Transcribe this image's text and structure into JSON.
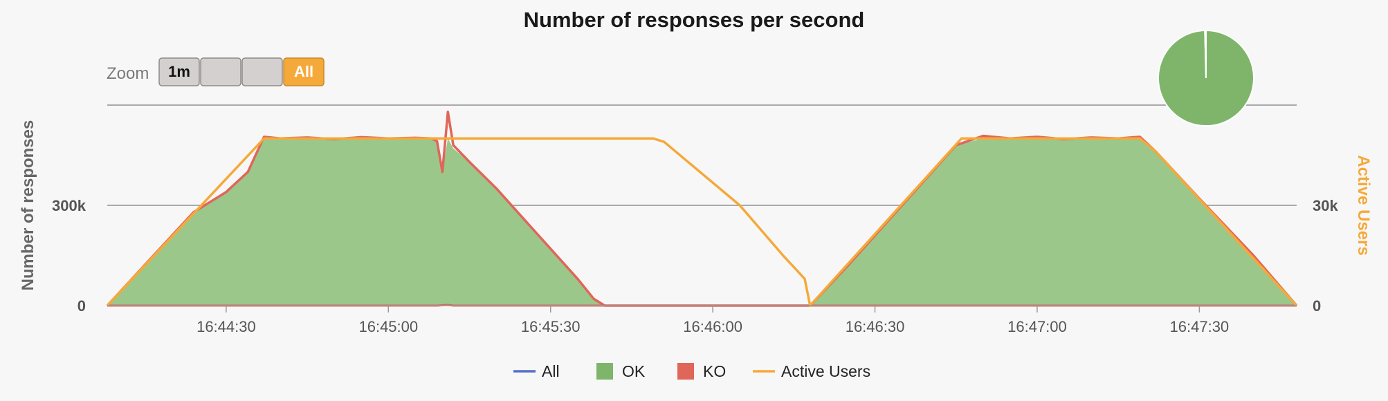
{
  "zoom": {
    "label": "Zoom",
    "buttons": [
      "1m",
      "",
      "",
      "All"
    ],
    "selected": "All"
  },
  "colors": {
    "all": "#5470c6",
    "ok": "#7fb56b",
    "ok_fill": "#9bc78b",
    "ko": "#e06659",
    "active_users": "#f5a93a",
    "selected_button": "#f5a93a"
  },
  "chart_data": {
    "type": "area",
    "title": "Number of responses per second",
    "ylabel": "Number of responses",
    "y2label": "Active Users",
    "ylim": [
      0,
      600000
    ],
    "y2lim": [
      0,
      60000
    ],
    "yticks": [
      {
        "v": 0,
        "label": "0"
      },
      {
        "v": 300000,
        "label": "300k"
      }
    ],
    "y2ticks": [
      {
        "v": 0,
        "label": "0"
      },
      {
        "v": 30000,
        "label": "30k"
      }
    ],
    "xlim": [
      "16:44:08",
      "16:47:48"
    ],
    "xticks": [
      "16:44:30",
      "16:45:00",
      "16:45:30",
      "16:46:00",
      "16:46:30",
      "16:47:00",
      "16:47:30"
    ],
    "grid": true,
    "legend_position": "bottom",
    "legend": [
      {
        "name": "All",
        "kind": "line"
      },
      {
        "name": "OK",
        "kind": "box"
      },
      {
        "name": "KO",
        "kind": "box"
      },
      {
        "name": "Active Users",
        "kind": "line"
      }
    ],
    "series": [
      {
        "name": "OK",
        "x": [
          "16:44:08",
          "16:44:16",
          "16:44:24",
          "16:44:30",
          "16:44:34",
          "16:44:37",
          "16:44:40",
          "16:44:45",
          "16:44:50",
          "16:44:55",
          "16:45:00",
          "16:45:05",
          "16:45:08",
          "16:45:09",
          "16:45:10",
          "16:45:11",
          "16:45:12",
          "16:45:15",
          "16:45:20",
          "16:45:25",
          "16:45:30",
          "16:45:35",
          "16:45:38",
          "16:45:40",
          "16:45:45",
          "16:46:00",
          "16:46:15",
          "16:46:18",
          "16:46:25",
          "16:46:35",
          "16:46:45",
          "16:46:50",
          "16:46:55",
          "16:47:00",
          "16:47:05",
          "16:47:10",
          "16:47:15",
          "16:47:19",
          "16:47:22",
          "16:47:30",
          "16:47:40",
          "16:47:48"
        ],
        "values": [
          0,
          140000,
          280000,
          340000,
          400000,
          500000,
          500000,
          498000,
          500000,
          499000,
          500000,
          498000,
          498000,
          490000,
          400000,
          500000,
          470000,
          430000,
          350000,
          260000,
          170000,
          80000,
          20000,
          0,
          0,
          0,
          0,
          0,
          120000,
          300000,
          480000,
          500000,
          498000,
          500000,
          499000,
          500000,
          499000,
          500000,
          460000,
          320000,
          150000,
          0
        ]
      },
      {
        "name": "KO",
        "x": [
          "16:44:08",
          "16:45:09",
          "16:45:11",
          "16:45:12",
          "16:47:48"
        ],
        "values": [
          0,
          0,
          2000,
          0,
          0
        ]
      },
      {
        "name": "All",
        "x": [
          "16:44:08",
          "16:44:16",
          "16:44:24",
          "16:44:30",
          "16:44:34",
          "16:44:37",
          "16:44:40",
          "16:44:45",
          "16:44:50",
          "16:44:55",
          "16:45:00",
          "16:45:05",
          "16:45:08",
          "16:45:09",
          "16:45:10",
          "16:45:11",
          "16:45:12",
          "16:45:15",
          "16:45:20",
          "16:45:25",
          "16:45:30",
          "16:45:35",
          "16:45:38",
          "16:45:40",
          "16:45:45",
          "16:46:00",
          "16:46:15",
          "16:46:18",
          "16:46:25",
          "16:46:35",
          "16:46:45",
          "16:46:50",
          "16:46:55",
          "16:47:00",
          "16:47:05",
          "16:47:10",
          "16:47:15",
          "16:47:19",
          "16:47:22",
          "16:47:30",
          "16:47:40",
          "16:47:48"
        ],
        "values": [
          0,
          140000,
          280000,
          340000,
          400000,
          505000,
          500000,
          503000,
          498000,
          504000,
          500000,
          502000,
          500000,
          492000,
          400000,
          580000,
          480000,
          430000,
          350000,
          260000,
          170000,
          80000,
          20000,
          0,
          0,
          0,
          0,
          0,
          120000,
          300000,
          480000,
          508000,
          500000,
          505000,
          498000,
          503000,
          500000,
          505000,
          460000,
          320000,
          150000,
          0
        ]
      },
      {
        "name": "Active Users",
        "axis": "right",
        "x": [
          "16:44:08",
          "16:44:37",
          "16:45:49",
          "16:45:51",
          "16:46:05",
          "16:46:13",
          "16:46:17",
          "16:46:18",
          "16:46:46",
          "16:47:19",
          "16:47:22",
          "16:47:48"
        ],
        "values": [
          0,
          50000,
          50000,
          49000,
          30000,
          15000,
          8000,
          0,
          50000,
          50000,
          46000,
          0
        ]
      }
    ],
    "pie": {
      "slices": [
        {
          "name": "OK",
          "value": 99.6
        },
        {
          "name": "KO",
          "value": 0.4
        }
      ]
    }
  }
}
